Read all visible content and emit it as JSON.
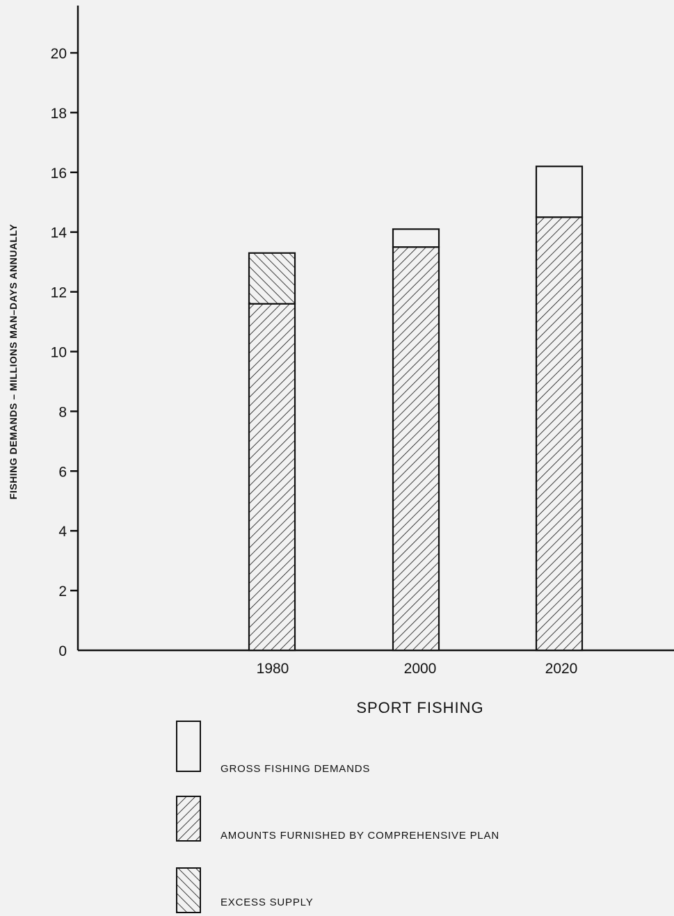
{
  "chart_data": {
    "type": "bar",
    "stacked": true,
    "categories": [
      "1980",
      "2000",
      "2020"
    ],
    "xlabel": "SPORT FISHING",
    "ylabel": "FISHING DEMANDS – MILLIONS MAN–DAYS ANNUALLY",
    "ylim": [
      0,
      21
    ],
    "yticks": [
      0,
      2,
      4,
      6,
      8,
      10,
      12,
      14,
      16,
      18,
      20
    ],
    "grid": false,
    "legend_position": "bottom",
    "series": [
      {
        "name": "AMOUNTS FURNISHED BY COMPREHENSIVE PLAN",
        "values": [
          11.6,
          13.5,
          14.5
        ],
        "pattern": "hatch-forward"
      },
      {
        "name": "EXCESS SUPPLY",
        "values": [
          1.7,
          0,
          0
        ],
        "pattern": "hatch-backward"
      },
      {
        "name": "GROSS FISHING DEMANDS",
        "values": [
          0,
          0.6,
          1.7
        ],
        "pattern": "empty"
      }
    ],
    "totals": [
      13.3,
      14.1,
      16.2
    ]
  },
  "colors": {
    "ink": "#111111",
    "background": "#f2f2f2"
  }
}
